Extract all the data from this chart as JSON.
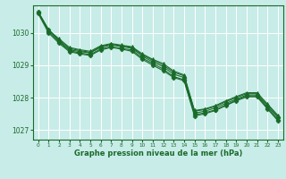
{
  "background_color": "#c8ece8",
  "grid_color": "#ffffff",
  "line_color": "#1a6b2a",
  "marker_color": "#1a6b2a",
  "title": "Graphe pression niveau de la mer (hPa)",
  "xlim": [
    -0.5,
    23.5
  ],
  "ylim": [
    1026.7,
    1030.85
  ],
  "yticks": [
    1027,
    1028,
    1029,
    1030
  ],
  "xticks": [
    0,
    1,
    2,
    3,
    4,
    5,
    6,
    7,
    8,
    9,
    10,
    11,
    12,
    13,
    14,
    15,
    16,
    17,
    18,
    19,
    20,
    21,
    22,
    23
  ],
  "series": [
    {
      "x": [
        0,
        1,
        2,
        3,
        4,
        5,
        6,
        7,
        8,
        9,
        10,
        11,
        12,
        13,
        14,
        15,
        16,
        17,
        18,
        19,
        20,
        21,
        22,
        23
      ],
      "y": [
        1030.65,
        1030.1,
        1029.75,
        1029.48,
        1029.42,
        1029.38,
        1029.55,
        1029.62,
        1029.58,
        1029.52,
        1029.28,
        1029.1,
        1028.95,
        1028.72,
        1028.62,
        1027.52,
        1027.58,
        1027.68,
        1027.82,
        1027.95,
        1028.08,
        1028.08,
        1027.72,
        1027.38
      ],
      "marker": "D",
      "markersize": 2.5
    },
    {
      "x": [
        0,
        1,
        2,
        3,
        4,
        5,
        6,
        7,
        8,
        9,
        10,
        11,
        12,
        13,
        14,
        15,
        16,
        17,
        18,
        19,
        20,
        21,
        22,
        23
      ],
      "y": [
        1030.65,
        1030.1,
        1029.78,
        1029.52,
        1029.45,
        1029.4,
        1029.58,
        1029.65,
        1029.6,
        1029.55,
        1029.32,
        1029.15,
        1029.0,
        1028.78,
        1028.67,
        1027.58,
        1027.63,
        1027.73,
        1027.87,
        1028.0,
        1028.12,
        1028.12,
        1027.77,
        1027.42
      ],
      "marker": "^",
      "markersize": 3.0
    },
    {
      "x": [
        0,
        1,
        2,
        3,
        4,
        5,
        6,
        7,
        8,
        9,
        10,
        11,
        12,
        13,
        14,
        15,
        16,
        17,
        18,
        19,
        20,
        21,
        22,
        23
      ],
      "y": [
        1030.65,
        1030.08,
        1029.82,
        1029.55,
        1029.48,
        1029.43,
        1029.6,
        1029.67,
        1029.62,
        1029.57,
        1029.35,
        1029.18,
        1029.05,
        1028.82,
        1028.7,
        1027.6,
        1027.65,
        1027.75,
        1027.9,
        1028.03,
        1028.15,
        1028.15,
        1027.8,
        1027.45
      ],
      "marker": "^",
      "markersize": 3.0
    },
    {
      "x": [
        0,
        1,
        2,
        3,
        4,
        5,
        6,
        7,
        8,
        9,
        10,
        11,
        12,
        13,
        14,
        15,
        16,
        17,
        18,
        19,
        20,
        21,
        22,
        23
      ],
      "y": [
        1030.62,
        1030.05,
        1029.72,
        1029.45,
        1029.38,
        1029.33,
        1029.5,
        1029.57,
        1029.52,
        1029.47,
        1029.22,
        1029.05,
        1028.88,
        1028.65,
        1028.55,
        1027.47,
        1027.53,
        1027.62,
        1027.77,
        1027.92,
        1028.05,
        1028.05,
        1027.68,
        1027.32
      ],
      "marker": "D",
      "markersize": 2.5
    },
    {
      "x": [
        0,
        1,
        2,
        3,
        4,
        5,
        6,
        7,
        8,
        9,
        10,
        11,
        12,
        13,
        14,
        15,
        16,
        17,
        18,
        19,
        20,
        21,
        22,
        23
      ],
      "y": [
        1030.6,
        1030.0,
        1029.68,
        1029.42,
        1029.35,
        1029.3,
        1029.47,
        1029.55,
        1029.5,
        1029.43,
        1029.18,
        1029.0,
        1028.83,
        1028.62,
        1028.52,
        1027.43,
        1027.5,
        1027.6,
        1027.75,
        1027.9,
        1028.02,
        1028.02,
        1027.65,
        1027.28
      ],
      "marker": "D",
      "markersize": 2.5
    }
  ]
}
